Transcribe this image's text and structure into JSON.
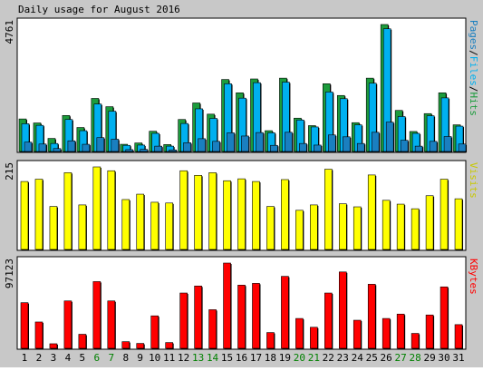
{
  "title": "Daily usage for August 2016",
  "colors": {
    "background": "#c8c8c8",
    "plot_bg": "#ffffff",
    "hits": "#1c9c3c",
    "files": "#00b0f0",
    "pages": "#1a7fc0",
    "visits": "#ffff00",
    "kbytes": "#ff0000",
    "weekend_label": "#008000",
    "outline": "#000000"
  },
  "chart_data": [
    {
      "type": "bar",
      "name": "hits-files-pages",
      "right_label_parts": [
        "Pages",
        "/",
        "Files",
        "/",
        "Hits"
      ],
      "ymax_label": "4761",
      "ylim": [
        0,
        4761
      ],
      "categories": [
        "1",
        "2",
        "3",
        "4",
        "5",
        "6",
        "7",
        "8",
        "9",
        "10",
        "11",
        "12",
        "13",
        "14",
        "15",
        "16",
        "17",
        "18",
        "19",
        "20",
        "21",
        "22",
        "23",
        "24",
        "25",
        "26",
        "27",
        "28",
        "29",
        "30",
        "31"
      ],
      "series": [
        {
          "name": "Hits",
          "values": [
            1220,
            1070,
            490,
            1350,
            900,
            1990,
            1680,
            270,
            320,
            760,
            260,
            1200,
            1820,
            1400,
            2700,
            2200,
            2720,
            780,
            2750,
            1250,
            970,
            2540,
            2100,
            1080,
            2750,
            4761,
            1540,
            750,
            1420,
            2200,
            1000
          ]
        },
        {
          "name": "Files",
          "values": [
            1040,
            980,
            300,
            1200,
            780,
            1780,
            1510,
            230,
            240,
            680,
            200,
            1050,
            1600,
            1240,
            2540,
            2000,
            2580,
            700,
            2600,
            1180,
            920,
            2230,
            1980,
            1000,
            2560,
            4600,
            1310,
            680,
            1340,
            2010,
            950
          ]
        },
        {
          "name": "Pages",
          "values": [
            350,
            280,
            110,
            400,
            270,
            520,
            460,
            70,
            80,
            200,
            60,
            330,
            480,
            380,
            700,
            580,
            710,
            230,
            720,
            300,
            240,
            620,
            550,
            300,
            720,
            1100,
            420,
            200,
            380,
            560,
            280
          ]
        }
      ]
    },
    {
      "type": "bar",
      "name": "visits",
      "right_label": "Visits",
      "ymax_label": "215",
      "ylim": [
        0,
        215
      ],
      "categories": [
        "1",
        "2",
        "3",
        "4",
        "5",
        "6",
        "7",
        "8",
        "9",
        "10",
        "11",
        "12",
        "13",
        "14",
        "15",
        "16",
        "17",
        "18",
        "19",
        "20",
        "21",
        "22",
        "23",
        "24",
        "25",
        "26",
        "27",
        "28",
        "29",
        "30",
        "31"
      ],
      "series": [
        {
          "name": "Visits",
          "values": [
            177,
            183,
            112,
            200,
            116,
            215,
            205,
            130,
            144,
            123,
            121,
            205,
            193,
            200,
            179,
            184,
            177,
            112,
            182,
            102,
            116,
            209,
            119,
            111,
            194,
            128,
            118,
            106,
            140,
            183,
            132
          ]
        }
      ]
    },
    {
      "type": "bar",
      "name": "kbytes",
      "right_label": "KBytes",
      "ymax_label": "97123",
      "ylim": [
        0,
        97123
      ],
      "categories": [
        "1",
        "2",
        "3",
        "4",
        "5",
        "6",
        "7",
        "8",
        "9",
        "10",
        "11",
        "12",
        "13",
        "14",
        "15",
        "16",
        "17",
        "18",
        "19",
        "20",
        "21",
        "22",
        "23",
        "24",
        "25",
        "26",
        "27",
        "28",
        "29",
        "30",
        "31"
      ],
      "series": [
        {
          "name": "KBytes",
          "values": [
            52000,
            30000,
            5200,
            54000,
            16000,
            76000,
            54000,
            7600,
            5600,
            37000,
            6600,
            63000,
            71000,
            44000,
            97123,
            72000,
            74000,
            18000,
            82000,
            34000,
            24000,
            63000,
            87000,
            32000,
            73000,
            34000,
            39000,
            17000,
            38000,
            70000,
            27000
          ]
        }
      ]
    }
  ],
  "weekend_days": [
    "6",
    "7",
    "13",
    "14",
    "20",
    "21",
    "27",
    "28"
  ]
}
